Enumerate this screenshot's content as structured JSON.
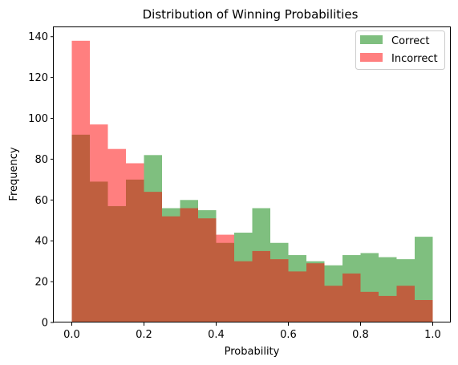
{
  "chart_data": {
    "type": "bar",
    "subtype": "overlaid-histogram",
    "title": "Distribution of Winning Probabilities",
    "xlabel": "Probability",
    "ylabel": "Frequency",
    "xlim": [
      -0.05,
      1.05
    ],
    "ylim": [
      0,
      145
    ],
    "x_ticks": [
      0.0,
      0.2,
      0.4,
      0.6,
      0.8,
      1.0
    ],
    "x_tick_labels": [
      "0.0",
      "0.2",
      "0.4",
      "0.6",
      "0.8",
      "1.0"
    ],
    "y_ticks": [
      0,
      20,
      40,
      60,
      80,
      100,
      120,
      140
    ],
    "y_tick_labels": [
      "0",
      "20",
      "40",
      "60",
      "80",
      "100",
      "120",
      "140"
    ],
    "bin_edges": [
      0.0,
      0.05,
      0.1,
      0.15,
      0.2,
      0.25,
      0.3,
      0.35,
      0.4,
      0.45,
      0.5,
      0.55,
      0.6,
      0.65,
      0.7,
      0.75,
      0.8,
      0.85,
      0.9,
      0.95,
      1.0
    ],
    "series": [
      {
        "name": "Correct",
        "color": "#008000",
        "alpha": 0.5,
        "values": [
          92,
          69,
          57,
          70,
          82,
          56,
          60,
          55,
          39,
          44,
          56,
          39,
          33,
          30,
          28,
          33,
          34,
          32,
          31,
          42
        ]
      },
      {
        "name": "Incorrect",
        "color": "#ff0000",
        "alpha": 0.5,
        "values": [
          138,
          97,
          85,
          78,
          64,
          52,
          56,
          51,
          43,
          30,
          35,
          31,
          25,
          29,
          18,
          24,
          15,
          13,
          18,
          11
        ]
      }
    ],
    "legend": {
      "position": "top-right",
      "entries": [
        "Correct",
        "Incorrect"
      ]
    },
    "grid": false
  }
}
